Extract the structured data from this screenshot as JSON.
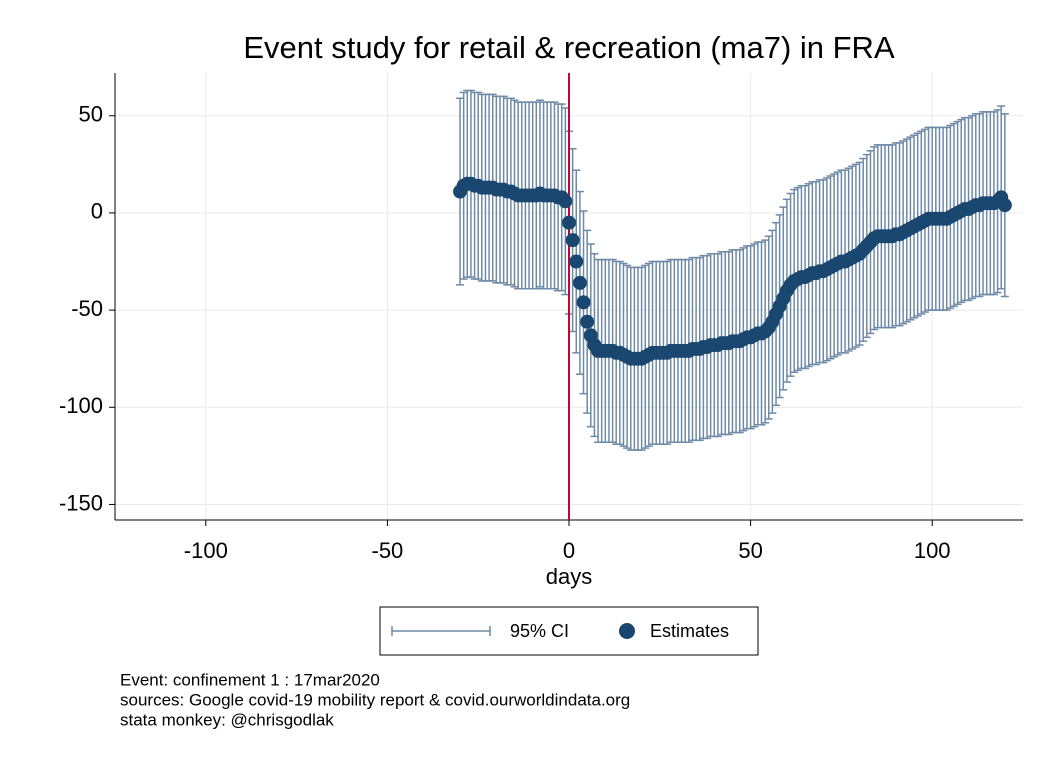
{
  "chart_data": {
    "type": "errorbar_scatter",
    "title": "Event study for retail & recreation (ma7) in FRA",
    "x_label": "days",
    "notes": [
      "Event: confinement 1 : 17mar2020",
      "sources: Google covid-19 mobility report & covid.ourworldindata.org",
      "stata monkey: @chrisgodlak"
    ],
    "xlim": [
      -125,
      125
    ],
    "xticks": [
      -100,
      -50,
      0,
      50,
      100
    ],
    "ylim": [
      -158,
      72
    ],
    "yticks": [
      -150,
      -100,
      -50,
      0,
      50
    ],
    "grid": true,
    "vline": 0,
    "vline_color": "#c10534",
    "x": [
      -30,
      -29,
      -28,
      -27,
      -26,
      -25,
      -24,
      -23,
      -22,
      -21,
      -20,
      -19,
      -18,
      -17,
      -16,
      -15,
      -14,
      -13,
      -12,
      -11,
      -10,
      -9,
      -8,
      -7,
      -6,
      -5,
      -4,
      -3,
      -2,
      -1,
      0,
      1,
      2,
      3,
      4,
      5,
      6,
      7,
      8,
      9,
      10,
      11,
      12,
      13,
      14,
      15,
      16,
      17,
      18,
      19,
      20,
      21,
      22,
      23,
      24,
      25,
      26,
      27,
      28,
      29,
      30,
      31,
      32,
      33,
      34,
      35,
      36,
      37,
      38,
      39,
      40,
      41,
      42,
      43,
      44,
      45,
      46,
      47,
      48,
      49,
      50,
      51,
      52,
      53,
      54,
      55,
      56,
      57,
      58,
      59,
      60,
      61,
      62,
      63,
      64,
      65,
      66,
      67,
      68,
      69,
      70,
      71,
      72,
      73,
      74,
      75,
      76,
      77,
      78,
      79,
      80,
      81,
      82,
      83,
      84,
      85,
      86,
      87,
      88,
      89,
      90,
      91,
      92,
      93,
      94,
      95,
      96,
      97,
      98,
      99,
      100,
      101,
      102,
      103,
      104,
      105,
      106,
      107,
      108,
      109,
      110,
      111,
      112,
      113,
      114,
      115,
      116,
      117,
      118,
      119,
      120
    ],
    "series": [
      {
        "name": "Estimates",
        "color": "#1a476f",
        "values": [
          11,
          14,
          15,
          15,
          14,
          14,
          13,
          13,
          13,
          13,
          12,
          12,
          12,
          11,
          11,
          10,
          9,
          9,
          9,
          9,
          9,
          9,
          10,
          9,
          9,
          9,
          9,
          8,
          8,
          6,
          -5,
          -14,
          -25,
          -36,
          -46,
          -56,
          -63,
          -68,
          -71,
          -71,
          -71,
          -71,
          -71,
          -72,
          -72,
          -73,
          -74,
          -75,
          -75,
          -75,
          -75,
          -74,
          -73,
          -72,
          -72,
          -72,
          -72,
          -72,
          -71,
          -71,
          -71,
          -71,
          -71,
          -71,
          -70,
          -70,
          -70,
          -69,
          -69,
          -68,
          -68,
          -68,
          -67,
          -67,
          -67,
          -66,
          -66,
          -66,
          -65,
          -64,
          -64,
          -63,
          -62,
          -62,
          -61,
          -59,
          -56,
          -52,
          -48,
          -44,
          -40,
          -37,
          -35,
          -34,
          -33,
          -33,
          -32,
          -31,
          -31,
          -30,
          -30,
          -29,
          -28,
          -27,
          -26,
          -25,
          -25,
          -24,
          -23,
          -22,
          -21,
          -19,
          -17,
          -15,
          -13,
          -12,
          -12,
          -12,
          -12,
          -12,
          -11,
          -11,
          -10,
          -9,
          -8,
          -7,
          -6,
          -5,
          -4,
          -3,
          -3,
          -3,
          -3,
          -3,
          -3,
          -2,
          -1,
          0,
          1,
          2,
          2,
          3,
          4,
          4,
          5,
          5,
          5,
          5,
          6,
          8,
          4
        ],
        "error_name": "95% CI",
        "error_color": "#6e8aa6",
        "errors": [
          48,
          48,
          48,
          48,
          48,
          48,
          48,
          48,
          48,
          48,
          48,
          48,
          48,
          48,
          48,
          48,
          48,
          48,
          48,
          48,
          48,
          48,
          48,
          48,
          48,
          48,
          48,
          48,
          48,
          48,
          47,
          47,
          47,
          47,
          47,
          47,
          47,
          47,
          47,
          47,
          47,
          47,
          47,
          47,
          47,
          47,
          47,
          47,
          47,
          47,
          47,
          47,
          47,
          47,
          47,
          47,
          47,
          47,
          47,
          47,
          47,
          47,
          47,
          47,
          47,
          47,
          47,
          47,
          47,
          47,
          47,
          47,
          47,
          47,
          47,
          47,
          47,
          47,
          47,
          47,
          47,
          47,
          47,
          47,
          47,
          47,
          47,
          47,
          47,
          47,
          47,
          47,
          47,
          47,
          47,
          47,
          47,
          47,
          47,
          47,
          47,
          47,
          47,
          47,
          47,
          47,
          47,
          47,
          47,
          47,
          47,
          47,
          47,
          47,
          47,
          47,
          47,
          47,
          47,
          47,
          47,
          47,
          47,
          47,
          47,
          47,
          47,
          47,
          47,
          47,
          47,
          47,
          47,
          47,
          47,
          47,
          47,
          47,
          47,
          47,
          47,
          47,
          47,
          47,
          47,
          47,
          47,
          47,
          47,
          47,
          47
        ]
      }
    ]
  }
}
